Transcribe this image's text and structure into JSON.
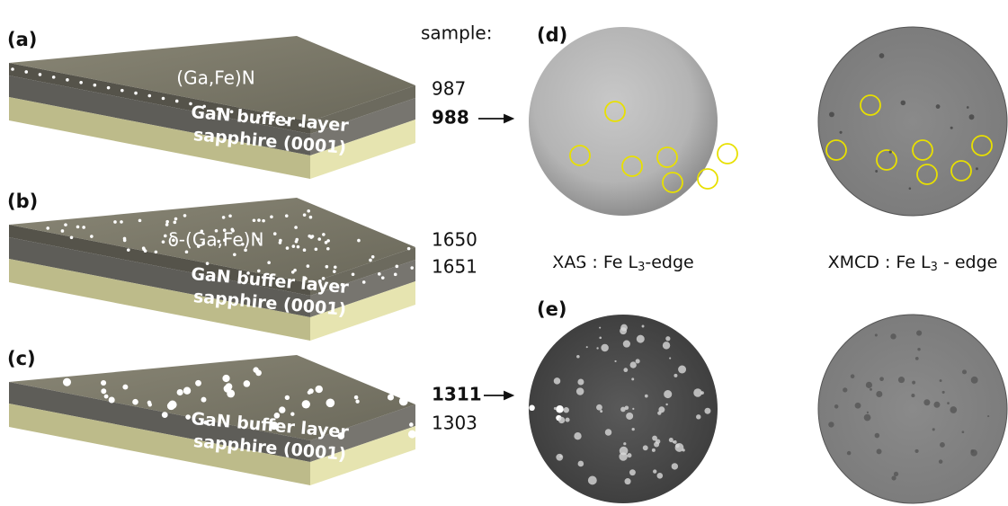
{
  "panels": [
    {
      "label": "(a)",
      "layer": "(Ga,Fe)N",
      "buffer": "GaN buffer layer",
      "substrate": "sapphire (0001)"
    },
    {
      "label": "(b)",
      "layer": "δ-(Ga,Fe)N",
      "buffer": "GaN buffer layer",
      "substrate": "sapphire (0001)"
    },
    {
      "label": "(c)",
      "buffer": "GaN buffer layer",
      "substrate": "sapphire (0001)"
    }
  ],
  "sample_header": "sample:",
  "samples": [
    {
      "id": "987",
      "bold": false
    },
    {
      "id": "988",
      "bold": true
    },
    {
      "id": "1650",
      "bold": false
    },
    {
      "id": "1651",
      "bold": false
    },
    {
      "id": "1311",
      "bold": true
    },
    {
      "id": "1303",
      "bold": false
    }
  ],
  "image_labels": [
    "(d)",
    "(e)"
  ],
  "captions": {
    "xas": {
      "prefix": "XAS : Fe L",
      "sub": "3",
      "suffix": "-edge"
    },
    "xmcd": {
      "prefix": "XMCD : Fe L",
      "sub": "3",
      "suffix": " - edge"
    }
  }
}
